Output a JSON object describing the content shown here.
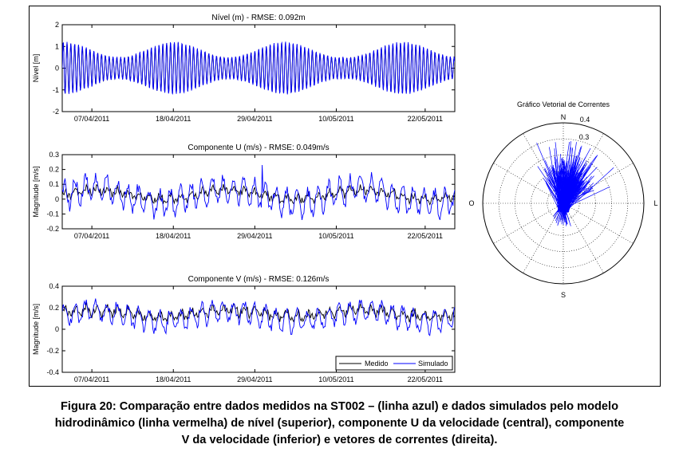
{
  "caption": {
    "lines": [
      "Figura 20: Comparação entre dados medidos na ST002 – (linha azul) e dados simulados pelo modelo",
      "hidrodinâmico (linha vermelha) de nível (superior), componente U da velocidade (central), componente",
      "V da velocidade (inferior) e vetores de correntes (direita)."
    ]
  },
  "colors": {
    "measured": "#000000",
    "simulated": "#0000ff",
    "grid": "#000000"
  },
  "chart_data": [
    {
      "type": "line",
      "title": "Nível (m) - RMSE: 0.092m",
      "ylabel": "Nível [m]",
      "ylim": [
        -2,
        2
      ],
      "yticks": [
        "2",
        "1",
        "0",
        "-1",
        "-2"
      ],
      "xlim": [
        "2011-04-03",
        "2011-05-26"
      ],
      "xtick_labels": [
        "07/04/2011",
        "18/04/2011",
        "29/04/2011",
        "10/05/2011",
        "22/05/2011"
      ],
      "xtick_dates": [
        "2011-04-07",
        "2011-04-18",
        "2011-04-29",
        "2011-05-10",
        "2011-05-22"
      ],
      "signal": {
        "kind": "tide",
        "mean": 0.0,
        "amp_min": 0.5,
        "amp_max": 1.2,
        "spring_dates": [
          "2011-04-18",
          "2011-05-03",
          "2011-05-19"
        ],
        "period_hours": 12.42
      },
      "series": [
        {
          "name": "Medido",
          "color": "#000000"
        },
        {
          "name": "Simulado",
          "color": "#0000ff"
        }
      ]
    },
    {
      "type": "line",
      "title": "Componente U (m/s) - RMSE: 0.049m/s",
      "ylabel": "Magnitude [m/s]",
      "ylim": [
        -0.2,
        0.3
      ],
      "yticks": [
        "0.3",
        "0.2",
        "0.1",
        "0",
        "-0.1",
        "-0.2"
      ],
      "xlim": [
        "2011-04-03",
        "2011-05-26"
      ],
      "xtick_labels": [
        "07/04/2011",
        "18/04/2011",
        "29/04/2011",
        "10/05/2011",
        "22/05/2011"
      ],
      "xtick_dates": [
        "2011-04-07",
        "2011-04-18",
        "2011-04-29",
        "2011-05-10",
        "2011-05-22"
      ],
      "signal": {
        "kind": "oscillation",
        "measured_mean": 0.03,
        "measured_amp": 0.05,
        "simulated_mean": 0.02,
        "simulated_amp": 0.11,
        "peak": {
          "date": "2011-04-30",
          "value": 0.23
        }
      },
      "series": [
        {
          "name": "Medido",
          "color": "#000000"
        },
        {
          "name": "Simulado",
          "color": "#0000ff"
        }
      ]
    },
    {
      "type": "line",
      "title": "Componente V (m/s) - RMSE: 0.126m/s",
      "ylabel": "Magnitude [m/s]",
      "ylim": [
        -0.4,
        0.4
      ],
      "yticks": [
        "0.4",
        "0.2",
        "0",
        "-0.2",
        "-0.4"
      ],
      "xlim": [
        "2011-04-03",
        "2011-05-26"
      ],
      "xtick_labels": [
        "07/04/2011",
        "18/04/2011",
        "29/04/2011",
        "10/05/2011",
        "22/05/2011"
      ],
      "xtick_dates": [
        "2011-04-07",
        "2011-04-18",
        "2011-04-29",
        "2011-05-10",
        "2011-05-22"
      ],
      "signal": {
        "kind": "oscillation",
        "measured_mean": 0.15,
        "measured_amp": 0.08,
        "simulated_mean": 0.12,
        "simulated_amp": 0.12
      },
      "legend": {
        "placement": "bottom-right",
        "entries": [
          "Medido",
          "Simulado"
        ]
      },
      "series": [
        {
          "name": "Medido",
          "color": "#000000"
        },
        {
          "name": "Simulado",
          "color": "#0000ff"
        }
      ]
    },
    {
      "type": "polar",
      "title": "Gráfico Vetorial de Correntes",
      "directions": {
        "north": "N",
        "south": "S",
        "east": "L",
        "west": "O"
      },
      "radial_labels": [
        "0.4",
        "0.3"
      ],
      "rmax": 0.5,
      "rings": [
        0.1,
        0.2,
        0.3,
        0.4,
        0.5
      ],
      "vectors": {
        "color": "#0000ff",
        "mean_direction_deg": 15,
        "spread_deg": 35,
        "min_magnitude": 0.15,
        "max_magnitude": 0.4
      }
    }
  ]
}
